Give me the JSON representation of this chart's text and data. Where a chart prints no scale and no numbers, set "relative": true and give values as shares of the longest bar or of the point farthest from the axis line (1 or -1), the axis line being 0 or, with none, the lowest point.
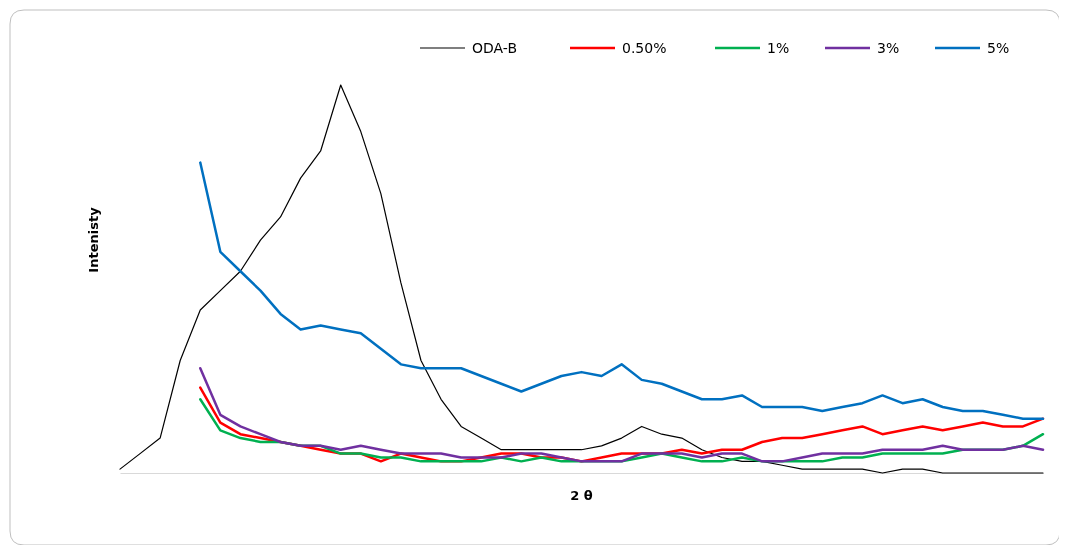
{
  "chart_data": {
    "type": "line",
    "relative": true,
    "xlabel": "2 θ",
    "ylabel": "Intenisty",
    "legend": "top right",
    "categories": [
      null,
      null,
      null,
      null,
      null,
      null,
      null,
      null,
      null,
      null,
      null,
      null,
      null,
      null,
      null,
      null,
      null,
      null,
      null,
      null,
      null,
      null,
      null,
      null,
      null,
      null,
      null,
      null,
      null,
      null,
      null,
      null,
      null,
      null,
      null,
      null,
      null,
      null,
      null,
      null,
      null,
      null,
      null,
      null,
      null,
      null,
      null
    ],
    "series": [
      {
        "name": "ODA-B",
        "color": "#000000",
        "values": [
          0.01,
          0.05,
          0.09,
          0.29,
          0.42,
          0.47,
          0.52,
          0.6,
          0.66,
          0.76,
          0.83,
          1.0,
          0.88,
          0.72,
          0.49,
          0.29,
          0.19,
          0.12,
          0.09,
          0.06,
          0.06,
          0.06,
          0.06,
          0.06,
          0.07,
          0.09,
          0.12,
          0.1,
          0.09,
          0.06,
          0.04,
          0.03,
          0.03,
          0.02,
          0.01,
          0.01,
          0.01,
          0.01,
          0.0,
          0.01,
          0.01,
          0.0,
          0.0,
          0.0,
          0.0,
          0.0,
          0.0
        ]
      },
      {
        "name": "0.50%",
        "color": "#ff0000",
        "values": [
          null,
          null,
          null,
          null,
          0.22,
          0.13,
          0.1,
          0.09,
          0.08,
          0.07,
          0.06,
          0.05,
          0.05,
          0.03,
          0.05,
          0.04,
          0.03,
          0.03,
          0.04,
          0.05,
          0.05,
          0.04,
          0.04,
          0.03,
          0.04,
          0.05,
          0.05,
          0.05,
          0.06,
          0.05,
          0.06,
          0.06,
          0.08,
          0.09,
          0.09,
          0.1,
          0.11,
          0.12,
          0.1,
          0.11,
          0.12,
          0.11,
          0.12,
          0.13,
          0.12,
          0.12,
          0.14
        ]
      },
      {
        "name": "1%",
        "color": "#00b050",
        "values": [
          null,
          null,
          null,
          null,
          0.19,
          0.11,
          0.09,
          0.08,
          0.08,
          0.07,
          0.07,
          0.05,
          0.05,
          0.04,
          0.04,
          0.03,
          0.03,
          0.03,
          0.03,
          0.04,
          0.03,
          0.04,
          0.03,
          0.03,
          0.03,
          0.03,
          0.04,
          0.05,
          0.04,
          0.03,
          0.03,
          0.04,
          0.03,
          0.03,
          0.03,
          0.03,
          0.04,
          0.04,
          0.05,
          0.05,
          0.05,
          0.05,
          0.06,
          0.06,
          0.06,
          0.07,
          0.1
        ]
      },
      {
        "name": "3%",
        "color": "#7030a0",
        "values": [
          null,
          null,
          null,
          null,
          0.27,
          0.15,
          0.12,
          0.1,
          0.08,
          0.07,
          0.07,
          0.06,
          0.07,
          0.06,
          0.05,
          0.05,
          0.05,
          0.04,
          0.04,
          0.04,
          0.05,
          0.05,
          0.04,
          0.03,
          0.03,
          0.03,
          0.05,
          0.05,
          0.05,
          0.04,
          0.05,
          0.05,
          0.03,
          0.03,
          0.04,
          0.05,
          0.05,
          0.05,
          0.06,
          0.06,
          0.06,
          0.07,
          0.06,
          0.06,
          0.06,
          0.07,
          0.06
        ]
      },
      {
        "name": "5%",
        "color": "#0070c0",
        "values": [
          null,
          null,
          null,
          null,
          0.8,
          0.57,
          0.52,
          0.47,
          0.41,
          0.37,
          0.38,
          0.37,
          0.36,
          0.32,
          0.28,
          0.27,
          0.27,
          0.27,
          0.25,
          0.23,
          0.21,
          0.23,
          0.25,
          0.26,
          0.25,
          0.28,
          0.24,
          0.23,
          0.21,
          0.19,
          0.19,
          0.2,
          0.17,
          0.17,
          0.17,
          0.16,
          0.17,
          0.18,
          0.2,
          0.18,
          0.19,
          0.17,
          0.16,
          0.16,
          0.15,
          0.14,
          0.14
        ]
      }
    ]
  }
}
